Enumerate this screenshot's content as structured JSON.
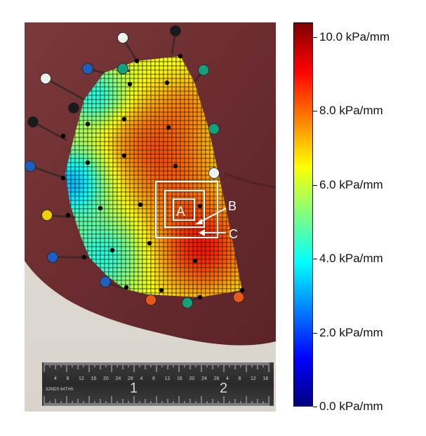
{
  "colorbar": {
    "unit": "kPa/mm",
    "min": 0.0,
    "max": 10.4,
    "ticks": [
      {
        "value": 10.0,
        "label": "10.0 kPa/mm"
      },
      {
        "value": 8.0,
        "label": "8.0 kPa/mm"
      },
      {
        "value": 6.0,
        "label": "6.0 kPa/mm"
      },
      {
        "value": 4.0,
        "label": "4.0 kPa/mm"
      },
      {
        "value": 2.0,
        "label": "2.0 kPa/mm"
      },
      {
        "value": 0.0,
        "label": "0.0 kPa/mm"
      }
    ],
    "colors": [
      "#00007f",
      "#0000ff",
      "#007fff",
      "#00ffff",
      "#7fff7f",
      "#ffff00",
      "#ff7f00",
      "#ff0000",
      "#7f0000"
    ]
  },
  "annotations": {
    "box_a": "A",
    "box_b": "B",
    "box_c": "C"
  },
  "ruler": {
    "marks_top": [
      "4",
      "8",
      "12",
      "16",
      "20",
      "24",
      "28",
      "4",
      "8",
      "12",
      "16",
      "20",
      "24",
      "28",
      "4",
      "8",
      "12",
      "16"
    ],
    "inch_1": "1",
    "inch_2": "2",
    "left_text": "32NDS 64THS"
  },
  "pin_colors": {
    "black": "#1a1a1a",
    "white": "#f2f2ee",
    "blue": "#1f5fbf",
    "teal": "#13a07c",
    "yellow": "#f0d000",
    "orange": "#e8581a"
  }
}
